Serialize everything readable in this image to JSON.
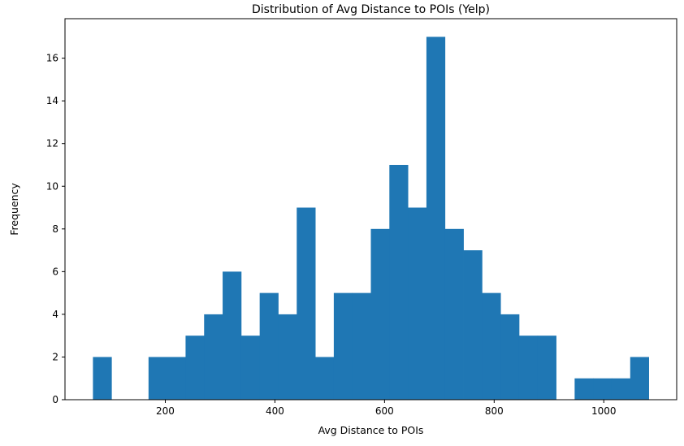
{
  "chart_data": {
    "type": "bar",
    "title": "Distribution of Avg Distance to POIs (Yelp)",
    "xlabel": "Avg Distance to POIs",
    "ylabel": "Frequency",
    "bins": [
      {
        "start": 68.0,
        "end": 101.8,
        "count": 2
      },
      {
        "start": 101.8,
        "end": 135.6,
        "count": 0
      },
      {
        "start": 135.6,
        "end": 169.4,
        "count": 0
      },
      {
        "start": 169.4,
        "end": 203.2,
        "count": 2
      },
      {
        "start": 203.2,
        "end": 237.0,
        "count": 2
      },
      {
        "start": 237.0,
        "end": 270.8,
        "count": 3
      },
      {
        "start": 270.8,
        "end": 304.6,
        "count": 4
      },
      {
        "start": 304.6,
        "end": 338.4,
        "count": 6
      },
      {
        "start": 338.4,
        "end": 372.2,
        "count": 3
      },
      {
        "start": 372.2,
        "end": 406.0,
        "count": 5
      },
      {
        "start": 406.0,
        "end": 439.8,
        "count": 4
      },
      {
        "start": 439.8,
        "end": 473.6,
        "count": 9
      },
      {
        "start": 473.6,
        "end": 507.4,
        "count": 2
      },
      {
        "start": 507.4,
        "end": 541.2,
        "count": 5
      },
      {
        "start": 541.2,
        "end": 575.0,
        "count": 5
      },
      {
        "start": 575.0,
        "end": 608.8,
        "count": 8
      },
      {
        "start": 608.8,
        "end": 642.6,
        "count": 11
      },
      {
        "start": 642.6,
        "end": 676.4,
        "count": 9
      },
      {
        "start": 676.4,
        "end": 710.2,
        "count": 17
      },
      {
        "start": 710.2,
        "end": 744.0,
        "count": 8
      },
      {
        "start": 744.0,
        "end": 777.8,
        "count": 7
      },
      {
        "start": 777.8,
        "end": 811.6,
        "count": 5
      },
      {
        "start": 811.6,
        "end": 845.4,
        "count": 4
      },
      {
        "start": 845.4,
        "end": 879.2,
        "count": 3
      },
      {
        "start": 879.2,
        "end": 913.0,
        "count": 3
      },
      {
        "start": 913.0,
        "end": 946.8,
        "count": 0
      },
      {
        "start": 946.8,
        "end": 980.6,
        "count": 1
      },
      {
        "start": 980.6,
        "end": 1014.4,
        "count": 1
      },
      {
        "start": 1014.4,
        "end": 1048.2,
        "count": 1
      },
      {
        "start": 1048.2,
        "end": 1082.0,
        "count": 2
      }
    ],
    "xlim": [
      17,
      1133
    ],
    "ylim": [
      0,
      17.85
    ],
    "xticks": [
      200,
      400,
      600,
      800,
      1000
    ],
    "yticks": [
      0,
      2,
      4,
      6,
      8,
      10,
      12,
      14,
      16
    ],
    "bar_color": "#1f77b4",
    "grid": false
  }
}
